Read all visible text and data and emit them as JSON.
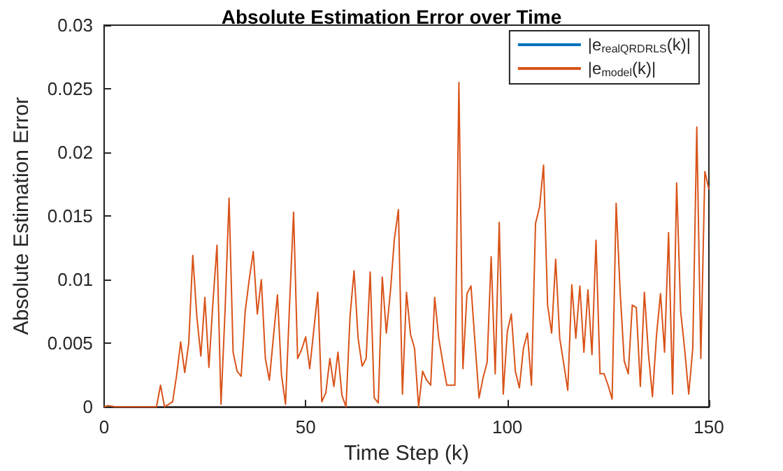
{
  "chart_data": {
    "type": "line",
    "title": "Absolute Estimation Error over Time",
    "xlabel": "Time Step (k)",
    "ylabel": "Absolute Estimation Error",
    "x": [
      0,
      1,
      3,
      13,
      14,
      15,
      16,
      17,
      18,
      19,
      20,
      21,
      22,
      23,
      24,
      25,
      26,
      27,
      28,
      29,
      30,
      31,
      32,
      33,
      34,
      35,
      36,
      37,
      38,
      39,
      40,
      41,
      42,
      43,
      44,
      45,
      46,
      47,
      48,
      49,
      50,
      51,
      52,
      53,
      54,
      55,
      56,
      57,
      58,
      59,
      60,
      61,
      62,
      63,
      64,
      65,
      66,
      67,
      68,
      69,
      70,
      71,
      72,
      73,
      74,
      75,
      76,
      77,
      78,
      79,
      80,
      81,
      82,
      83,
      84,
      85,
      86,
      87,
      88,
      89,
      90,
      91,
      92,
      93,
      94,
      95,
      96,
      97,
      98,
      99,
      100,
      101,
      102,
      103,
      104,
      105,
      106,
      107,
      108,
      109,
      110,
      111,
      112,
      113,
      114,
      115,
      116,
      117,
      118,
      119,
      120,
      121,
      122,
      123,
      124,
      125,
      126,
      127,
      128,
      129,
      130,
      131,
      132,
      133,
      134,
      135,
      136,
      137,
      138,
      139,
      140,
      141,
      142,
      143,
      144,
      145,
      146,
      147,
      148,
      149,
      150
    ],
    "series": [
      {
        "name": "|e$_{realQRDRLS}$(k)|",
        "color": "#0072bd",
        "values": [
          null,
          null,
          null,
          null,
          null,
          null,
          null,
          null,
          null,
          null,
          null,
          null,
          null,
          null,
          null,
          null,
          null,
          null,
          null,
          null,
          null,
          null,
          null,
          null,
          null,
          null,
          null,
          null,
          null,
          null,
          null,
          null,
          null,
          null,
          null,
          null,
          null,
          null,
          null,
          null,
          null,
          null,
          null,
          null,
          null,
          null,
          null,
          null,
          null,
          null,
          null,
          null,
          null,
          null,
          null,
          null,
          null,
          null,
          null,
          null,
          null,
          null,
          null,
          null,
          null,
          null,
          null,
          null,
          null,
          null,
          null,
          null,
          null,
          null,
          null,
          null,
          null,
          null,
          null,
          null,
          null,
          null,
          null,
          null,
          null,
          null,
          null,
          null,
          null,
          null,
          null,
          null,
          null,
          null,
          null,
          null,
          null,
          null,
          null,
          null,
          null,
          null,
          null,
          null,
          null,
          null,
          null,
          null,
          null,
          null,
          null,
          null,
          null,
          null,
          null,
          null,
          null,
          null,
          null,
          null,
          null,
          null,
          null,
          null,
          null,
          null,
          null,
          null,
          null,
          null,
          null,
          null,
          null,
          null,
          null,
          null,
          null,
          null,
          null,
          null,
          null
        ]
      },
      {
        "name": "|e$_{model}$(k)|",
        "color": "#d95319",
        "values": [
          0,
          0.0001,
          0,
          0,
          0.0017,
          0,
          0.0002,
          0.0004,
          0.0025,
          0.0051,
          0.0027,
          0.005,
          0.0119,
          0.0071,
          0.004,
          0.0086,
          0.0031,
          0.0082,
          0.0127,
          0.0002,
          0.0075,
          0.0164,
          0.0043,
          0.0028,
          0.0024,
          0.0075,
          0.01,
          0.0122,
          0.0073,
          0.01,
          0.0038,
          0.0021,
          0.0055,
          0.0088,
          0.0025,
          0.0002,
          0.008,
          0.0153,
          0.0038,
          0.0045,
          0.0055,
          0.003,
          0.006,
          0.009,
          0.0004,
          0.0011,
          0.0038,
          0.0016,
          0.0043,
          0.0009,
          0,
          0.0071,
          0.0107,
          0.0054,
          0.0032,
          0.0038,
          0.0106,
          0.0007,
          0.0003,
          0.0102,
          0.0058,
          0.009,
          0.0132,
          0.0155,
          0.001,
          0.009,
          0.0057,
          0.0046,
          0,
          0.0028,
          0.0021,
          0.0017,
          0.0086,
          0.0054,
          0.0035,
          0.0017,
          0.0017,
          0.0017,
          0.0255,
          0.003,
          0.0089,
          0.0095,
          0.005,
          0.0007,
          0.0023,
          0.0035,
          0.0118,
          0.0026,
          0.0145,
          0.001,
          0.0059,
          0.0073,
          0.0028,
          0.0015,
          0.0046,
          0.0058,
          0.0017,
          0.0144,
          0.0157,
          0.019,
          0.008,
          0.0058,
          0.0116,
          0.0054,
          0.0034,
          0.0013,
          0.0096,
          0.0054,
          0.0095,
          0.0043,
          0.0092,
          0.0041,
          0.0131,
          0.0026,
          0.0026,
          0.0017,
          0.0006,
          0.016,
          0.009,
          0.0036,
          0.0026,
          0.008,
          0.0078,
          0.0016,
          0.009,
          0.0042,
          0.0008,
          0.0056,
          0.0089,
          0.0043,
          0.0137,
          0.001,
          0.0176,
          0.0075,
          0.0045,
          0.001,
          0.0046,
          0.022,
          0.0038,
          0.0185,
          0.0171
        ]
      }
    ],
    "xlim": [
      0,
      150
    ],
    "xticks": [
      0,
      50,
      100,
      150
    ],
    "ylim": [
      0,
      0.03
    ],
    "yticks": [
      0,
      0.005,
      0.01,
      0.015,
      0.02,
      0.025,
      0.03
    ],
    "grid": false,
    "legend": "top right",
    "marker": "none",
    "line_style": "solid"
  }
}
